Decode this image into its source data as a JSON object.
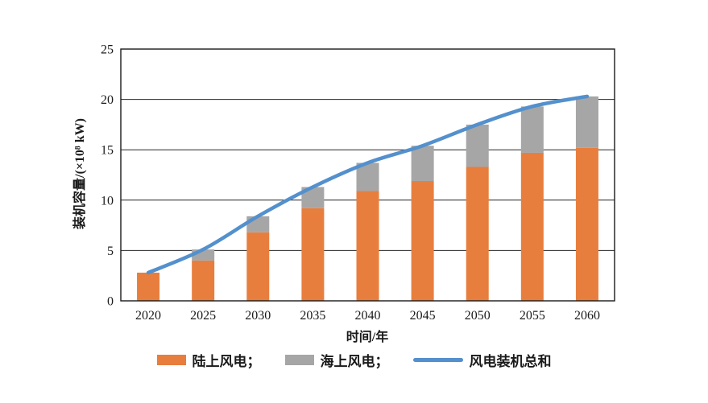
{
  "chart_data": {
    "type": "bar",
    "subtype": "stacked-bar-with-line",
    "title": "",
    "xlabel": "时间/年",
    "ylabel": "装机容量/(×10⁸ kW)",
    "categories": [
      "2020",
      "2025",
      "2030",
      "2035",
      "2040",
      "2045",
      "2050",
      "2055",
      "2060"
    ],
    "series": [
      {
        "name": "陆上风电",
        "kind": "bar",
        "color": "#E87E3D",
        "values": [
          2.8,
          4.0,
          6.8,
          9.2,
          10.9,
          11.9,
          13.3,
          14.7,
          15.2
        ]
      },
      {
        "name": "海上风电",
        "kind": "bar",
        "color": "#A6A6A6",
        "values": [
          0,
          1.1,
          1.6,
          2.1,
          2.8,
          3.5,
          4.2,
          4.6,
          5.1
        ]
      },
      {
        "name": "风电装机总和",
        "kind": "line",
        "color": "#5390CD",
        "values": [
          2.8,
          5.1,
          8.4,
          11.3,
          13.7,
          15.4,
          17.5,
          19.3,
          20.3
        ]
      }
    ],
    "stacked": true,
    "ylim": [
      0,
      25
    ],
    "yticks": [
      0,
      5,
      10,
      15,
      20,
      25
    ],
    "grid": "horizontal",
    "legend_position": "bottom"
  },
  "axes": {
    "x_title": "时间/年",
    "y_title": "装机容量/(×10⁸ kW)"
  },
  "legend": {
    "items": [
      {
        "label": "陆上风电；",
        "color": "#E87E3D",
        "swatch": "bar"
      },
      {
        "label": "海上风电；",
        "color": "#A6A6A6",
        "swatch": "bar"
      },
      {
        "label": "风电装机总和",
        "color": "#5390CD",
        "swatch": "line"
      }
    ]
  },
  "colors": {
    "onshore": "#E87E3D",
    "offshore": "#A6A6A6",
    "total_line": "#5390CD",
    "axis": "#1a1a1a",
    "background": "#ffffff"
  }
}
